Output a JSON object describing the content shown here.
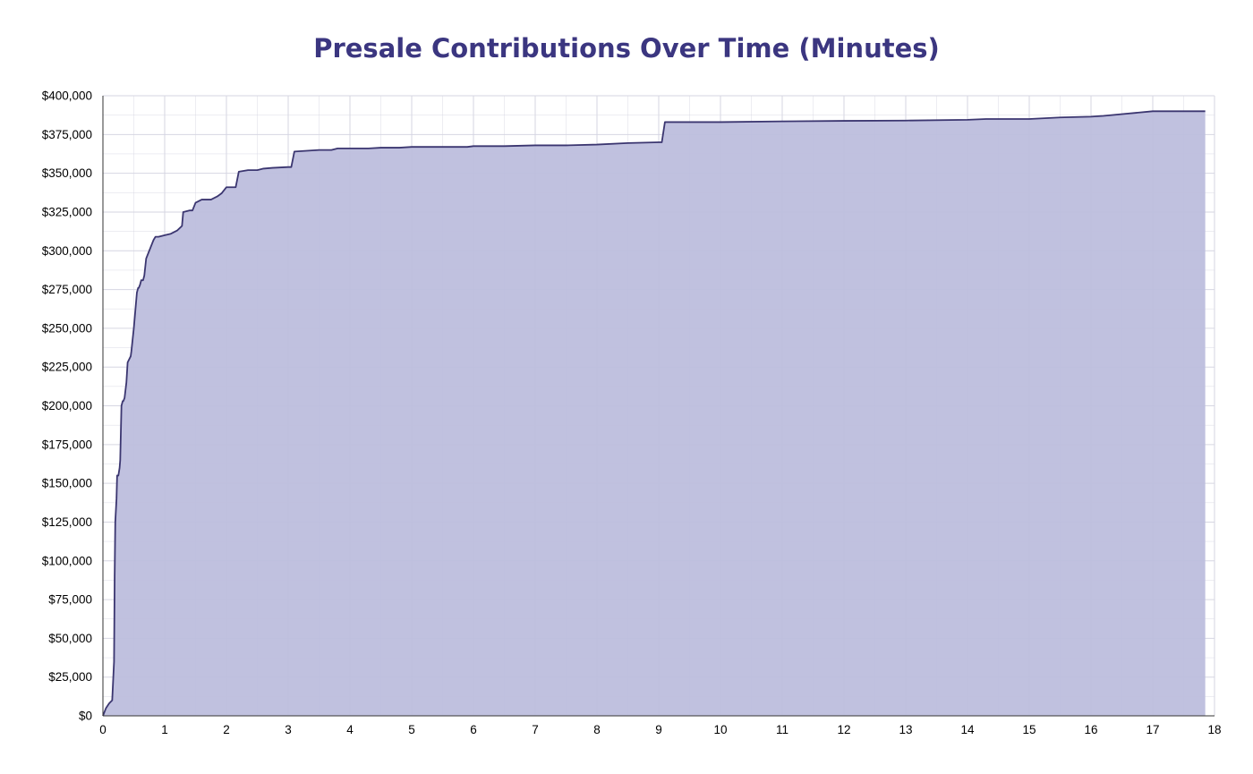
{
  "chart_data": {
    "type": "area",
    "title": "Presale Contributions Over Time (Minutes)",
    "xlabel": "",
    "ylabel": "",
    "xlim": [
      0,
      18
    ],
    "ylim": [
      0,
      400000
    ],
    "x_ticks": [
      0,
      1,
      2,
      3,
      4,
      5,
      6,
      7,
      8,
      9,
      10,
      11,
      12,
      13,
      14,
      15,
      16,
      17,
      18
    ],
    "x_tick_labels": [
      "0",
      "1",
      "2",
      "3",
      "4",
      "5",
      "6",
      "7",
      "8",
      "9",
      "10",
      "11",
      "12",
      "13",
      "14",
      "15",
      "16",
      "17",
      "18"
    ],
    "y_ticks": [
      0,
      25000,
      50000,
      75000,
      100000,
      125000,
      150000,
      175000,
      200000,
      225000,
      250000,
      275000,
      300000,
      325000,
      350000,
      375000,
      400000
    ],
    "y_tick_labels": [
      "$0",
      "$25,000",
      "$50,000",
      "$75,000",
      "$100,000",
      "$125,000",
      "$150,000",
      "$175,000",
      "$200,000",
      "$225,000",
      "$250,000",
      "$275,000",
      "$300,000",
      "$325,000",
      "$350,000",
      "$375,000",
      "$400,000"
    ],
    "grid": true,
    "legend": "none",
    "colors": {
      "title": "#3b3680",
      "line": "#3b3670",
      "fill": "#bdbedd",
      "grid": "#d6d6e2",
      "axis": "#333333"
    },
    "series": [
      {
        "x": [
          0,
          0.05,
          0.1,
          0.15,
          0.18,
          0.19,
          0.2,
          0.22,
          0.23,
          0.25,
          0.27,
          0.28,
          0.3,
          0.32,
          0.33,
          0.35,
          0.38,
          0.4,
          0.45,
          0.46,
          0.5,
          0.55,
          0.57,
          0.58,
          0.6,
          0.62,
          0.65,
          0.67,
          0.7,
          0.75,
          0.77,
          0.8,
          0.82,
          0.85,
          0.88,
          0.9,
          1.0,
          1.1,
          1.2,
          1.28,
          1.3,
          1.4,
          1.45,
          1.5,
          1.6,
          1.75,
          1.85,
          1.92,
          2.0,
          2.05,
          2.15,
          2.2,
          2.35,
          2.5,
          2.6,
          2.75,
          3.0,
          3.05,
          3.1,
          3.3,
          3.5,
          3.7,
          3.8,
          4.0,
          4.3,
          4.5,
          4.8,
          5.0,
          5.5,
          5.9,
          6.0,
          6.5,
          7.0,
          7.5,
          8.0,
          8.5,
          9.0,
          9.05,
          9.1,
          10.0,
          11.0,
          12.0,
          13.0,
          14.0,
          14.3,
          14.5,
          15.0,
          15.5,
          16.0,
          16.2,
          17.0,
          17.85
        ],
        "values": [
          0,
          5000,
          8000,
          10000,
          35000,
          90000,
          125000,
          140000,
          155000,
          155000,
          160000,
          165000,
          200000,
          203000,
          203000,
          205000,
          215000,
          228000,
          232000,
          235000,
          250000,
          273000,
          276000,
          276000,
          278000,
          281000,
          281000,
          284000,
          295000,
          300000,
          302000,
          305000,
          307000,
          309000,
          309000,
          309000,
          310000,
          311000,
          313000,
          316000,
          325000,
          326000,
          326000,
          331000,
          333000,
          333000,
          335000,
          337000,
          341000,
          341000,
          341000,
          351000,
          352000,
          352000,
          353000,
          353500,
          354000,
          354000,
          364000,
          364500,
          365000,
          365000,
          366000,
          366000,
          366000,
          366500,
          366500,
          367000,
          367000,
          367000,
          367500,
          367500,
          368000,
          368000,
          368500,
          369500,
          370000,
          370000,
          383000,
          383000,
          383500,
          383800,
          384000,
          384500,
          385000,
          385000,
          385000,
          386000,
          386500,
          387000,
          390000,
          390000
        ]
      }
    ]
  }
}
